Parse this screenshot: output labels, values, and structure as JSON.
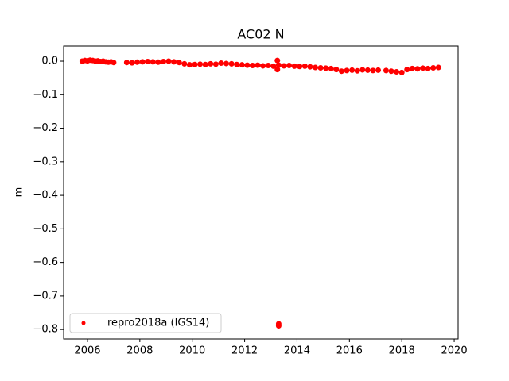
{
  "chart_data": {
    "type": "scatter",
    "title": "AC02 N",
    "ylabel": "m",
    "xlim": [
      2005.09,
      2020.15
    ],
    "ylim": [
      -0.828,
      0.045
    ],
    "xticks": [
      2006,
      2008,
      2010,
      2012,
      2014,
      2016,
      2018,
      2020
    ],
    "yticks": [
      {
        "value": 0,
        "label": "0.0"
      },
      {
        "value": -0.1,
        "label": "−0.1"
      },
      {
        "value": -0.2,
        "label": "−0.2"
      },
      {
        "value": -0.3,
        "label": "−0.3"
      },
      {
        "value": -0.4,
        "label": "−0.4"
      },
      {
        "value": -0.5,
        "label": "−0.5"
      },
      {
        "value": -0.6,
        "label": "−0.6"
      },
      {
        "value": -0.7,
        "label": "−0.7"
      },
      {
        "value": -0.8,
        "label": "−0.8"
      }
    ],
    "legend": "lower left",
    "grid": false,
    "series": [
      {
        "name": "repro2018a (IGS14)",
        "color": "#ff0000",
        "x": [
          2005.8,
          2005.9,
          2006.0,
          2006.1,
          2006.2,
          2006.3,
          2006.4,
          2006.5,
          2006.6,
          2006.7,
          2006.8,
          2006.9,
          2007.0,
          2007.5,
          2007.7,
          2007.9,
          2008.1,
          2008.3,
          2008.5,
          2008.7,
          2008.9,
          2009.1,
          2009.3,
          2009.5,
          2009.7,
          2009.9,
          2010.1,
          2010.3,
          2010.5,
          2010.7,
          2010.9,
          2011.1,
          2011.3,
          2011.5,
          2011.7,
          2011.9,
          2012.1,
          2012.3,
          2012.5,
          2012.7,
          2012.9,
          2013.1,
          2013.3,
          2013.5,
          2013.7,
          2013.9,
          2014.1,
          2014.3,
          2014.5,
          2014.7,
          2014.9,
          2015.1,
          2015.3,
          2015.5,
          2015.7,
          2015.9,
          2016.1,
          2016.3,
          2016.5,
          2016.7,
          2016.9,
          2017.1,
          2013.25,
          2013.25,
          2013.3,
          2013.3,
          2017.4,
          2017.6,
          2017.8,
          2018.0,
          2018.2,
          2018.4,
          2018.6,
          2018.8,
          2019.0,
          2019.2,
          2019.4
        ],
        "values": [
          0.0,
          0.002,
          0.001,
          0.003,
          0.002,
          0.0,
          0.001,
          -0.001,
          0.0,
          -0.002,
          -0.003,
          -0.002,
          -0.004,
          -0.004,
          -0.005,
          -0.003,
          -0.002,
          -0.001,
          -0.002,
          -0.003,
          -0.001,
          0.0,
          -0.002,
          -0.004,
          -0.008,
          -0.011,
          -0.01,
          -0.009,
          -0.01,
          -0.008,
          -0.009,
          -0.006,
          -0.007,
          -0.008,
          -0.01,
          -0.011,
          -0.012,
          -0.013,
          -0.012,
          -0.014,
          -0.013,
          -0.015,
          -0.012,
          -0.014,
          -0.013,
          -0.015,
          -0.016,
          -0.015,
          -0.017,
          -0.019,
          -0.02,
          -0.021,
          -0.022,
          -0.025,
          -0.03,
          -0.028,
          -0.027,
          -0.029,
          -0.026,
          -0.027,
          -0.028,
          -0.027,
          0.002,
          -0.025,
          -0.783,
          -0.789,
          -0.028,
          -0.03,
          -0.032,
          -0.034,
          -0.025,
          -0.022,
          -0.023,
          -0.021,
          -0.022,
          -0.02,
          -0.019
        ]
      }
    ]
  }
}
